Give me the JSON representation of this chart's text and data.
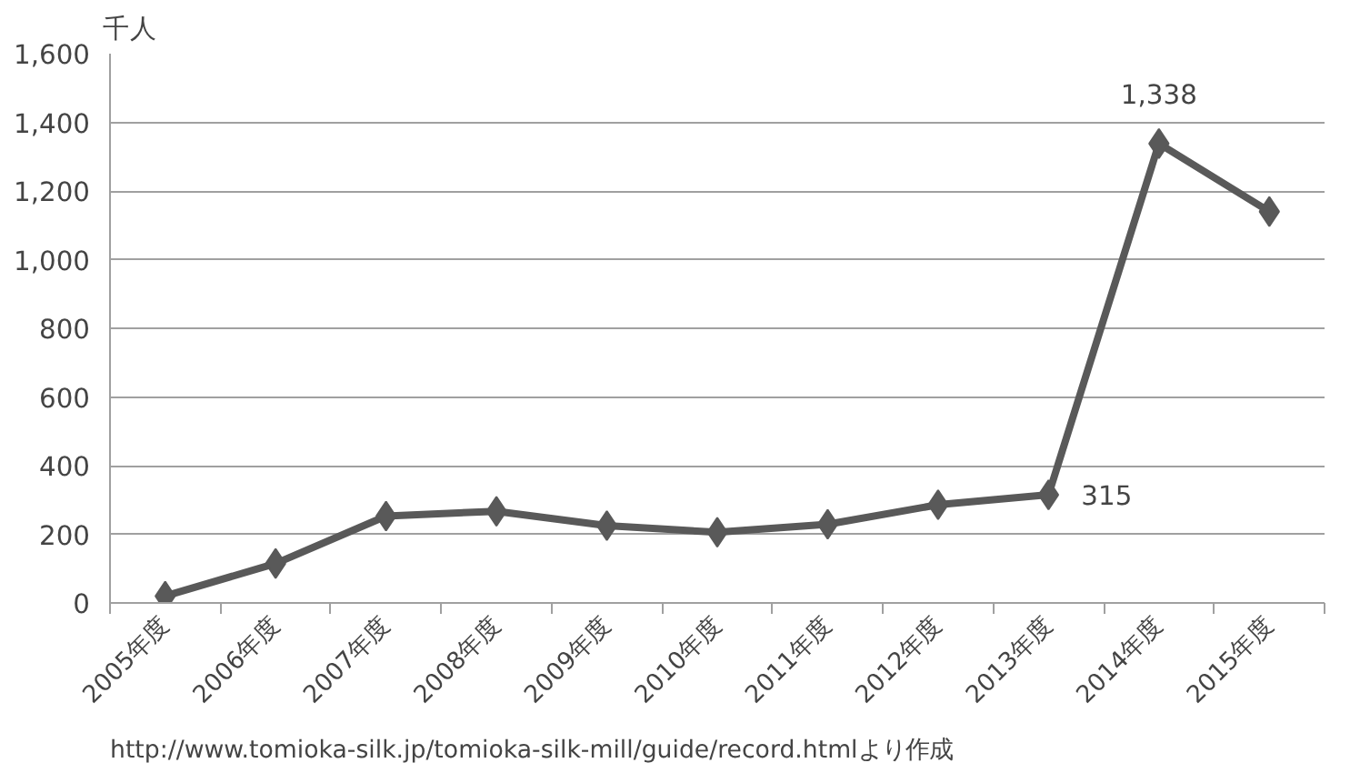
{
  "chart_data": {
    "type": "line",
    "ylabel": "千人",
    "categories": [
      "2005年度",
      "2006年度",
      "2007年度",
      "2008年度",
      "2009年度",
      "2010年度",
      "2011年度",
      "2012年度",
      "2013年度",
      "2014年度",
      "2015年度"
    ],
    "series": [
      {
        "color": "#595959",
        "values": [
          20,
          115,
          253,
          267,
          225,
          206,
          229,
          286,
          315,
          1338,
          1140
        ],
        "value_labels": [
          null,
          null,
          null,
          null,
          null,
          null,
          null,
          null,
          "315",
          "1,338",
          null
        ]
      }
    ],
    "ylim": [
      0,
      1600
    ],
    "yticks": [
      {
        "value": 0,
        "label": "0"
      },
      {
        "value": 200,
        "label": "200"
      },
      {
        "value": 400,
        "label": "400"
      },
      {
        "value": 600,
        "label": "600"
      },
      {
        "value": 800,
        "label": "800"
      },
      {
        "value": 1000,
        "label": "1,000"
      },
      {
        "value": 1200,
        "label": "1,200"
      },
      {
        "value": 1400,
        "label": "1,400"
      },
      {
        "value": 1600,
        "label": "1,600"
      }
    ],
    "grid": "y",
    "marker": "diamond",
    "line_style": "solid",
    "annotations": [
      "http://www.tomioka-silk.jp/tomioka-silk-mill/guide/record.htmlより作成"
    ]
  }
}
